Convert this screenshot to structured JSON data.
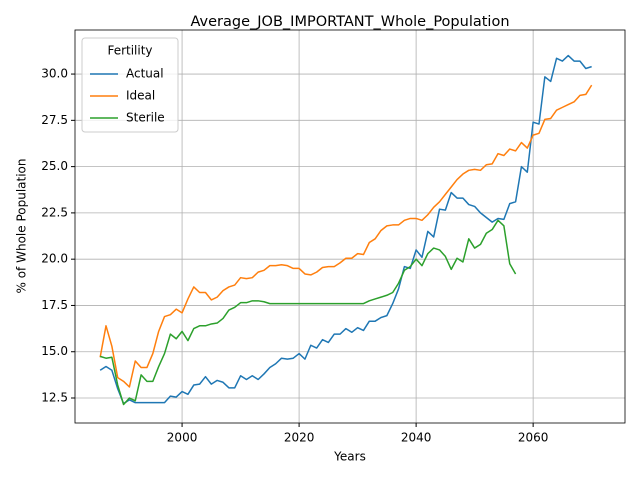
{
  "chart_data": {
    "type": "line",
    "title": "Average_JOB_IMPORTANT_Whole_Population",
    "x_label": "Years",
    "y_label": "% of Whole Population",
    "legend_title": "Fertility",
    "legend_position": "upper left",
    "grid": true,
    "x": [
      1986,
      1987,
      1988,
      1989,
      1990,
      1991,
      1992,
      1993,
      1994,
      1995,
      1996,
      1997,
      1998,
      1999,
      2000,
      2001,
      2002,
      2003,
      2004,
      2005,
      2006,
      2007,
      2008,
      2009,
      2010,
      2011,
      2012,
      2013,
      2014,
      2015,
      2016,
      2017,
      2018,
      2019,
      2020,
      2021,
      2022,
      2023,
      2024,
      2025,
      2026,
      2027,
      2028,
      2029,
      2030,
      2031,
      2032,
      2033,
      2034,
      2035,
      2036,
      2037,
      2038,
      2039,
      2040,
      2041,
      2042,
      2043,
      2044,
      2045,
      2046,
      2047,
      2048,
      2049,
      2050,
      2051,
      2052,
      2053,
      2054,
      2055,
      2056,
      2057,
      2058,
      2059,
      2060,
      2061,
      2062,
      2063,
      2064,
      2065,
      2066,
      2067,
      2068,
      2069,
      2070
    ],
    "series": [
      {
        "name": "Actual",
        "color": "#1f77b4",
        "values": [
          14.0,
          14.2,
          14.0,
          13.0,
          12.2,
          12.4,
          12.25,
          12.25,
          12.25,
          12.25,
          12.25,
          12.25,
          12.6,
          12.55,
          12.85,
          12.7,
          13.2,
          13.25,
          13.65,
          13.25,
          13.45,
          13.35,
          13.05,
          13.05,
          13.7,
          13.5,
          13.7,
          13.5,
          13.8,
          14.15,
          14.35,
          14.65,
          14.6,
          14.65,
          14.9,
          14.6,
          15.35,
          15.2,
          15.65,
          15.5,
          15.95,
          15.95,
          16.25,
          16.05,
          16.3,
          16.15,
          16.65,
          16.65,
          16.85,
          16.95,
          17.6,
          18.4,
          19.6,
          19.5,
          20.5,
          20.1,
          21.5,
          21.2,
          22.7,
          22.65,
          23.6,
          23.3,
          23.3,
          22.95,
          22.85,
          22.5,
          22.25,
          22.0,
          22.2,
          22.15,
          23.0,
          23.1,
          25.0,
          24.7,
          27.4,
          27.3,
          29.85,
          29.6,
          30.85,
          30.7,
          31.0,
          30.7,
          30.7,
          30.3,
          30.4
        ]
      },
      {
        "name": "Ideal",
        "color": "#ff7f0e",
        "values": [
          14.7,
          16.4,
          15.3,
          13.6,
          13.4,
          13.1,
          14.5,
          14.15,
          14.15,
          14.9,
          16.1,
          16.9,
          17.0,
          17.3,
          17.1,
          17.85,
          18.5,
          18.2,
          18.2,
          17.8,
          17.95,
          18.3,
          18.5,
          18.6,
          19.0,
          18.95,
          19.0,
          19.3,
          19.4,
          19.65,
          19.65,
          19.7,
          19.65,
          19.5,
          19.5,
          19.2,
          19.15,
          19.3,
          19.55,
          19.6,
          19.6,
          19.8,
          20.05,
          20.05,
          20.3,
          20.25,
          20.9,
          21.1,
          21.55,
          21.8,
          21.85,
          21.85,
          22.1,
          22.2,
          22.2,
          22.1,
          22.4,
          22.8,
          23.1,
          23.5,
          23.9,
          24.3,
          24.6,
          24.8,
          24.85,
          24.8,
          25.1,
          25.15,
          25.7,
          25.6,
          25.95,
          25.85,
          26.3,
          26.0,
          26.7,
          26.8,
          27.55,
          27.6,
          28.05,
          28.2,
          28.35,
          28.5,
          28.85,
          28.9,
          29.4
        ]
      },
      {
        "name": "Sterile",
        "color": "#2ca02c",
        "values": [
          14.75,
          14.65,
          14.7,
          13.2,
          12.15,
          12.5,
          12.35,
          13.75,
          13.4,
          13.4,
          14.2,
          14.9,
          15.95,
          15.7,
          16.1,
          15.6,
          16.25,
          16.4,
          16.4,
          16.5,
          16.55,
          16.8,
          17.25,
          17.4,
          17.65,
          17.65,
          17.75,
          17.75,
          17.7,
          17.6,
          17.6,
          17.6,
          17.6,
          17.6,
          17.6,
          17.6,
          17.6,
          17.6,
          17.6,
          17.6,
          17.6,
          17.6,
          17.6,
          17.6,
          17.6,
          17.6,
          17.75,
          17.85,
          17.95,
          18.05,
          18.2,
          18.7,
          19.4,
          19.6,
          20.0,
          19.65,
          20.3,
          20.6,
          20.5,
          20.15,
          19.45,
          20.05,
          19.85,
          21.1,
          20.6,
          20.8,
          21.4,
          21.6,
          22.1,
          21.8,
          19.75,
          19.2,
          null,
          null,
          null,
          null,
          null,
          null,
          null,
          null,
          null,
          null,
          null,
          null,
          null
        ]
      }
    ],
    "xlim": [
      1981.7,
      2075.7
    ],
    "ylim": [
      11.15,
      32.38
    ],
    "xticks": [
      2000,
      2020,
      2040,
      2060
    ],
    "yticks": [
      12.5,
      {
        "value": 15,
        "label": "15.0"
      },
      17.5,
      {
        "value": 20,
        "label": "20.0"
      },
      22.5,
      {
        "value": 25,
        "label": "25.0"
      },
      27.5,
      {
        "value": 30,
        "label": "30.0"
      }
    ]
  }
}
